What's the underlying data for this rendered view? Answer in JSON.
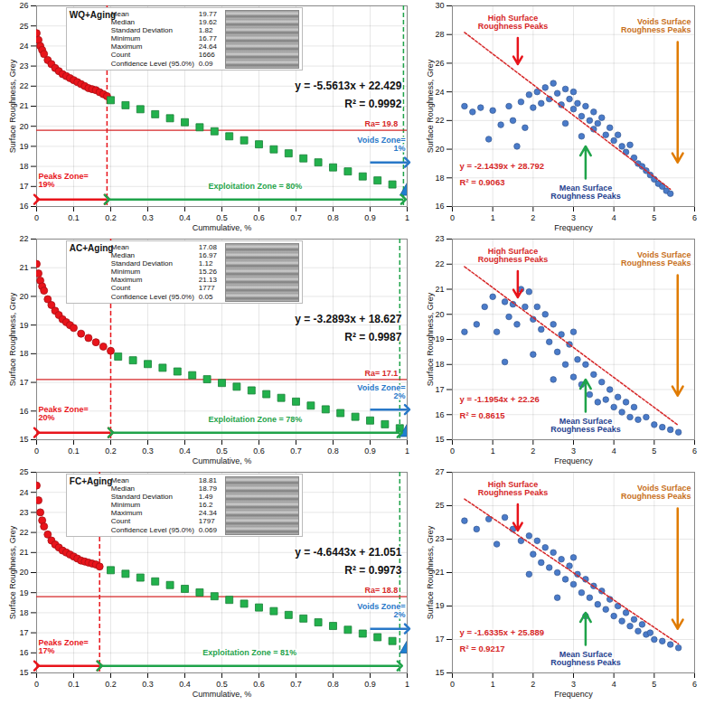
{
  "chart_data": [
    {
      "type": "scatter",
      "title": "WQ+Aging",
      "x_label": "Cummulative, %",
      "y_label": "Surface Roughness, Grey",
      "xlim": [
        0,
        1
      ],
      "xticks": [
        0,
        0.1,
        0.2,
        0.3,
        0.4,
        0.5,
        0.6,
        0.7,
        0.8,
        0.9,
        1
      ],
      "ylim": [
        16,
        26
      ],
      "yticks": [
        16,
        17,
        18,
        19,
        20,
        21,
        22,
        23,
        24,
        25,
        26
      ],
      "grid": true,
      "stats": {
        "labels": [
          "Mean",
          "Median",
          "Standard Deviation",
          "Minimum",
          "Maximum",
          "Count",
          "Confidence Level (95.0%)"
        ],
        "values": [
          19.77,
          19.62,
          1.82,
          16.77,
          24.64,
          1666,
          0.09
        ]
      },
      "series": [
        {
          "marker": "circle",
          "color": "#e8141b",
          "x": [
            0,
            0.005,
            0.01,
            0.015,
            0.02,
            0.03,
            0.04,
            0.05,
            0.06,
            0.07,
            0.08,
            0.09,
            0.1,
            0.11,
            0.12,
            0.13,
            0.14,
            0.15,
            0.16,
            0.17,
            0.18,
            0.19
          ],
          "values": [
            24.64,
            24.3,
            24.0,
            23.8,
            23.6,
            23.3,
            23.1,
            22.9,
            22.75,
            22.6,
            22.5,
            22.4,
            22.3,
            22.2,
            22.1,
            22.0,
            21.9,
            21.85,
            21.8,
            21.7,
            21.6,
            21.5
          ]
        },
        {
          "marker": "square",
          "color": "#22b14c",
          "x": [
            0.2,
            0.24,
            0.28,
            0.32,
            0.36,
            0.4,
            0.44,
            0.48,
            0.52,
            0.56,
            0.6,
            0.64,
            0.68,
            0.72,
            0.76,
            0.8,
            0.84,
            0.88,
            0.92,
            0.96
          ],
          "values": [
            21.3,
            21.05,
            20.85,
            20.6,
            20.4,
            20.2,
            19.95,
            19.75,
            19.5,
            19.3,
            19.1,
            18.85,
            18.65,
            18.4,
            18.2,
            17.95,
            17.75,
            17.5,
            17.3,
            17.1
          ]
        },
        {
          "marker": "triangle",
          "color": "#1f7fd0",
          "x": [
            1
          ],
          "values": [
            16.77
          ]
        }
      ],
      "ra_line": {
        "value": 19.8,
        "label": "Ra= 19.8"
      },
      "zone_bounds": [
        0.19,
        0.99
      ],
      "zones": [
        {
          "label": "Peaks Zone= 19%",
          "from": 0,
          "to": 0.19,
          "color": "#e8141b"
        },
        {
          "label": "Exploitation Zone = 80%",
          "from": 0.19,
          "to": 0.99,
          "color": "#1fa34a"
        },
        {
          "label": "Voids Zone= 1%",
          "from": 0.9,
          "to": 1,
          "color": "#2878c8"
        }
      ],
      "equation": "y = -5.5613x + 22.429",
      "r2": "R² = 0.9992"
    },
    {
      "type": "scatter",
      "x_label": "Frequency",
      "y_label": "Surface Roughness, Grey",
      "xlim": [
        0,
        6
      ],
      "xticks": [
        0,
        1,
        2,
        3,
        4,
        5,
        6
      ],
      "ylim": [
        16,
        30
      ],
      "yticks": [
        16,
        18,
        20,
        22,
        24,
        26,
        28,
        30
      ],
      "grid": true,
      "color": "#4a7bc9",
      "x": [
        0.3,
        0.5,
        0.7,
        0.9,
        1.0,
        1.2,
        1.4,
        1.5,
        1.6,
        1.7,
        1.8,
        1.9,
        2.0,
        2.1,
        2.2,
        2.3,
        2.4,
        2.5,
        2.6,
        2.7,
        2.8,
        2.8,
        2.9,
        3.0,
        3.0,
        3.1,
        3.2,
        3.2,
        3.3,
        3.4,
        3.5,
        3.5,
        3.6,
        3.7,
        3.8,
        3.9,
        4.0,
        4.1,
        4.2,
        4.3,
        4.4,
        4.5,
        4.6,
        4.7,
        4.8,
        4.9,
        5.0,
        5.1,
        5.2,
        5.3,
        5.4
      ],
      "values": [
        23.0,
        22.6,
        22.9,
        20.7,
        22.7,
        21.7,
        23.0,
        22.0,
        20.2,
        23.3,
        21.5,
        23.8,
        22.9,
        24.0,
        23.2,
        24.3,
        23.5,
        24.6,
        23.9,
        23.1,
        24.2,
        21.8,
        23.5,
        22.8,
        24.0,
        23.2,
        22.3,
        20.9,
        23.0,
        22.0,
        22.6,
        21.4,
        21.8,
        22.2,
        21.0,
        21.5,
        20.6,
        21.0,
        20.2,
        19.8,
        20.3,
        19.4,
        19.0,
        18.8,
        18.5,
        18.2,
        17.9,
        17.6,
        17.4,
        17.1,
        16.9
      ],
      "trendline": {
        "x": [
          0.3,
          5.4
        ],
        "y": [
          28.15,
          17.21
        ]
      },
      "equation": "y = -2.1439x + 28.792",
      "r2": "R² = 0.9063",
      "annotations": [
        {
          "text": "High Surface Roughness Peaks",
          "color": "#d62728"
        },
        {
          "text": "Mean Surface Roughness Peaks",
          "color": "#1f3f8f"
        },
        {
          "text": "Voids Surface Roughness Peaks",
          "color": "#c8701c"
        }
      ]
    },
    {
      "type": "scatter",
      "title": "AC+Aging",
      "x_label": "Cummulative, %",
      "y_label": "Surface Roughness, Grey",
      "xlim": [
        0,
        1
      ],
      "xticks": [
        0,
        0.1,
        0.2,
        0.3,
        0.4,
        0.5,
        0.6,
        0.7,
        0.8,
        0.9,
        1
      ],
      "ylim": [
        15,
        22
      ],
      "yticks": [
        15,
        16,
        17,
        18,
        19,
        20,
        21,
        22
      ],
      "grid": true,
      "stats": {
        "labels": [
          "Mean",
          "Median",
          "Standard Deviation",
          "Minimum",
          "Maximum",
          "Count",
          "Confidence Level (95.0%)"
        ],
        "values": [
          17.08,
          16.97,
          1.12,
          15.26,
          21.13,
          1777,
          0.05
        ]
      },
      "series": [
        {
          "marker": "circle",
          "color": "#e8141b",
          "x": [
            0,
            0.005,
            0.01,
            0.015,
            0.02,
            0.03,
            0.04,
            0.05,
            0.06,
            0.07,
            0.08,
            0.09,
            0.1,
            0.12,
            0.14,
            0.16,
            0.18,
            0.2
          ],
          "values": [
            21.13,
            20.8,
            20.55,
            20.35,
            20.2,
            19.9,
            19.7,
            19.5,
            19.35,
            19.2,
            19.1,
            19.0,
            18.9,
            18.7,
            18.55,
            18.4,
            18.25,
            18.1
          ]
        },
        {
          "marker": "square",
          "color": "#22b14c",
          "x": [
            0.22,
            0.26,
            0.3,
            0.34,
            0.38,
            0.42,
            0.46,
            0.5,
            0.54,
            0.58,
            0.62,
            0.66,
            0.7,
            0.74,
            0.78,
            0.82,
            0.86,
            0.9,
            0.94,
            0.98
          ],
          "values": [
            17.9,
            17.77,
            17.64,
            17.51,
            17.38,
            17.25,
            17.11,
            16.98,
            16.85,
            16.72,
            16.59,
            16.46,
            16.33,
            16.19,
            16.06,
            15.93,
            15.8,
            15.67,
            15.54,
            15.4
          ]
        },
        {
          "marker": "triangle",
          "color": "#1f7fd0",
          "x": [
            1
          ],
          "values": [
            15.26
          ]
        }
      ],
      "ra_line": {
        "value": 17.1,
        "label": "Ra= 17.1"
      },
      "zone_bounds": [
        0.2,
        0.98
      ],
      "zones": [
        {
          "label": "Peaks Zone= 20%",
          "from": 0,
          "to": 0.2,
          "color": "#e8141b"
        },
        {
          "label": "Exploitation Zone = 78%",
          "from": 0.2,
          "to": 0.98,
          "color": "#1fa34a"
        },
        {
          "label": "Voids Zone= 2%",
          "from": 0.9,
          "to": 1,
          "color": "#2878c8"
        }
      ],
      "equation": "y = -3.2893x + 18.627",
      "r2": "R² = 0.9987"
    },
    {
      "type": "scatter",
      "x_label": "Frequency",
      "y_label": "Surface Roughness, Grey",
      "xlim": [
        0,
        6
      ],
      "xticks": [
        0,
        1,
        2,
        3,
        4,
        5,
        6
      ],
      "ylim": [
        15,
        23
      ],
      "yticks": [
        15,
        16,
        17,
        18,
        19,
        20,
        21,
        22,
        23
      ],
      "grid": true,
      "color": "#4a7bc9",
      "x": [
        0.3,
        0.6,
        0.8,
        1.0,
        1.1,
        1.3,
        1.3,
        1.4,
        1.5,
        1.6,
        1.7,
        1.8,
        1.9,
        2.0,
        2.0,
        2.1,
        2.2,
        2.3,
        2.4,
        2.5,
        2.5,
        2.6,
        2.7,
        2.8,
        2.9,
        3.0,
        3.0,
        3.1,
        3.2,
        3.3,
        3.4,
        3.5,
        3.6,
        3.7,
        3.8,
        3.9,
        4.0,
        4.1,
        4.2,
        4.3,
        4.4,
        4.5,
        4.6,
        4.8,
        5.0,
        5.2,
        5.4,
        5.6
      ],
      "values": [
        19.3,
        19.6,
        20.3,
        20.7,
        19.3,
        20.5,
        18.1,
        19.9,
        20.4,
        19.6,
        21.0,
        20.3,
        20.9,
        19.8,
        18.4,
        20.3,
        19.4,
        20.0,
        18.9,
        19.6,
        17.4,
        18.5,
        19.2,
        18.0,
        18.8,
        17.5,
        19.3,
        18.2,
        17.2,
        18.0,
        16.8,
        17.6,
        16.5,
        17.3,
        16.6,
        17.0,
        16.3,
        16.7,
        16.1,
        16.5,
        15.9,
        16.3,
        15.8,
        15.9,
        15.6,
        15.5,
        15.4,
        15.3
      ],
      "trendline": {
        "x": [
          0.3,
          5.6
        ],
        "y": [
          21.9,
          15.57
        ]
      },
      "equation": "y = -1.1954x + 22.26",
      "r2": "R² = 0.8615",
      "annotations": [
        {
          "text": "High Surface Roughness Peaks",
          "color": "#d62728"
        },
        {
          "text": "Mean Surface Roughness Peaks",
          "color": "#1f3f8f"
        },
        {
          "text": "Voids Surface Roughness Peaks",
          "color": "#c8701c"
        }
      ]
    },
    {
      "type": "scatter",
      "title": "FC+Aging",
      "x_label": "Cummulative, %",
      "y_label": "Surface Roughness, Grey",
      "xlim": [
        0,
        1
      ],
      "xticks": [
        0,
        0.1,
        0.2,
        0.3,
        0.4,
        0.5,
        0.6,
        0.7,
        0.8,
        0.9,
        1
      ],
      "ylim": [
        15,
        25
      ],
      "yticks": [
        15,
        16,
        17,
        18,
        19,
        20,
        21,
        22,
        23,
        24,
        25
      ],
      "grid": true,
      "stats": {
        "labels": [
          "Mean",
          "Median",
          "Standard Deviation",
          "Minimum",
          "Maximum",
          "Count",
          "Confidence Level (95.0%)"
        ],
        "values": [
          18.81,
          18.79,
          1.49,
          16.2,
          24.34,
          1797,
          0.069
        ]
      },
      "series": [
        {
          "marker": "circle",
          "color": "#e8141b",
          "x": [
            0,
            0.005,
            0.01,
            0.015,
            0.02,
            0.03,
            0.04,
            0.05,
            0.06,
            0.07,
            0.08,
            0.09,
            0.1,
            0.11,
            0.12,
            0.13,
            0.14,
            0.15,
            0.16,
            0.17
          ],
          "values": [
            24.34,
            23.6,
            23.0,
            22.6,
            22.3,
            21.9,
            21.6,
            21.4,
            21.25,
            21.1,
            21.0,
            20.9,
            20.8,
            20.7,
            20.6,
            20.55,
            20.5,
            20.45,
            20.4,
            20.3
          ]
        },
        {
          "marker": "square",
          "color": "#22b14c",
          "x": [
            0.2,
            0.24,
            0.28,
            0.32,
            0.36,
            0.4,
            0.44,
            0.48,
            0.52,
            0.56,
            0.6,
            0.64,
            0.68,
            0.72,
            0.76,
            0.8,
            0.84,
            0.88,
            0.92,
            0.96
          ],
          "values": [
            20.12,
            19.94,
            19.75,
            19.56,
            19.38,
            19.19,
            19.01,
            18.82,
            18.64,
            18.45,
            18.26,
            18.08,
            17.89,
            17.71,
            17.52,
            17.34,
            17.15,
            16.96,
            16.78,
            16.59
          ]
        },
        {
          "marker": "triangle",
          "color": "#1f7fd0",
          "x": [
            1
          ],
          "values": [
            16.2
          ]
        }
      ],
      "ra_line": {
        "value": 18.8,
        "label": "Ra= 18.8"
      },
      "zone_bounds": [
        0.17,
        0.98
      ],
      "zones": [
        {
          "label": "Peaks Zone= 17%",
          "from": 0,
          "to": 0.17,
          "color": "#e8141b"
        },
        {
          "label": "Exploitation Zone = 81%",
          "from": 0.17,
          "to": 0.98,
          "color": "#1fa34a"
        },
        {
          "label": "Voids Zone= 2%",
          "from": 0.9,
          "to": 1,
          "color": "#2878c8"
        }
      ],
      "equation": "y = -4.6443x + 21.051",
      "r2": "R² = 0.9973"
    },
    {
      "type": "scatter",
      "x_label": "Frequency",
      "y_label": "Surface Roughness, Grey",
      "xlim": [
        0,
        6
      ],
      "xticks": [
        0,
        1,
        2,
        3,
        4,
        5,
        6
      ],
      "ylim": [
        15,
        27
      ],
      "yticks": [
        15,
        17,
        19,
        21,
        23,
        25,
        27
      ],
      "grid": true,
      "color": "#4a7bc9",
      "x": [
        0.3,
        0.6,
        0.9,
        1.1,
        1.3,
        1.5,
        1.7,
        1.9,
        1.9,
        2.0,
        2.1,
        2.2,
        2.3,
        2.4,
        2.5,
        2.6,
        2.6,
        2.7,
        2.8,
        2.9,
        3.0,
        3.0,
        3.1,
        3.2,
        3.3,
        3.3,
        3.4,
        3.5,
        3.6,
        3.7,
        3.8,
        3.9,
        4.0,
        4.1,
        4.2,
        4.3,
        4.4,
        4.5,
        4.6,
        4.7,
        4.8,
        4.9,
        5.0,
        5.2,
        5.4,
        5.6
      ],
      "values": [
        24.1,
        23.6,
        24.2,
        22.7,
        24.3,
        23.6,
        22.9,
        23.2,
        20.9,
        22.1,
        22.9,
        21.6,
        22.5,
        21.3,
        22.2,
        21.0,
        19.5,
        21.8,
        20.6,
        21.4,
        20.3,
        21.9,
        20.9,
        19.8,
        20.6,
        18.4,
        19.5,
        20.2,
        19.1,
        19.9,
        18.8,
        19.4,
        18.4,
        19.0,
        18.1,
        18.6,
        17.8,
        18.2,
        17.5,
        17.9,
        17.3,
        17.4,
        17.0,
        16.9,
        16.7,
        16.5
      ],
      "trendline": {
        "x": [
          0.3,
          5.6
        ],
        "y": [
          25.4,
          16.74
        ]
      },
      "equation": "y = -1.6335x + 25.889",
      "r2": "R² = 0.9217",
      "annotations": [
        {
          "text": "High Surface Roughness Peaks",
          "color": "#d62728"
        },
        {
          "text": "Mean Surface Roughness Peaks",
          "color": "#1f3f8f"
        },
        {
          "text": "Voids Surface Roughness Peaks",
          "color": "#c8701c"
        }
      ]
    }
  ]
}
